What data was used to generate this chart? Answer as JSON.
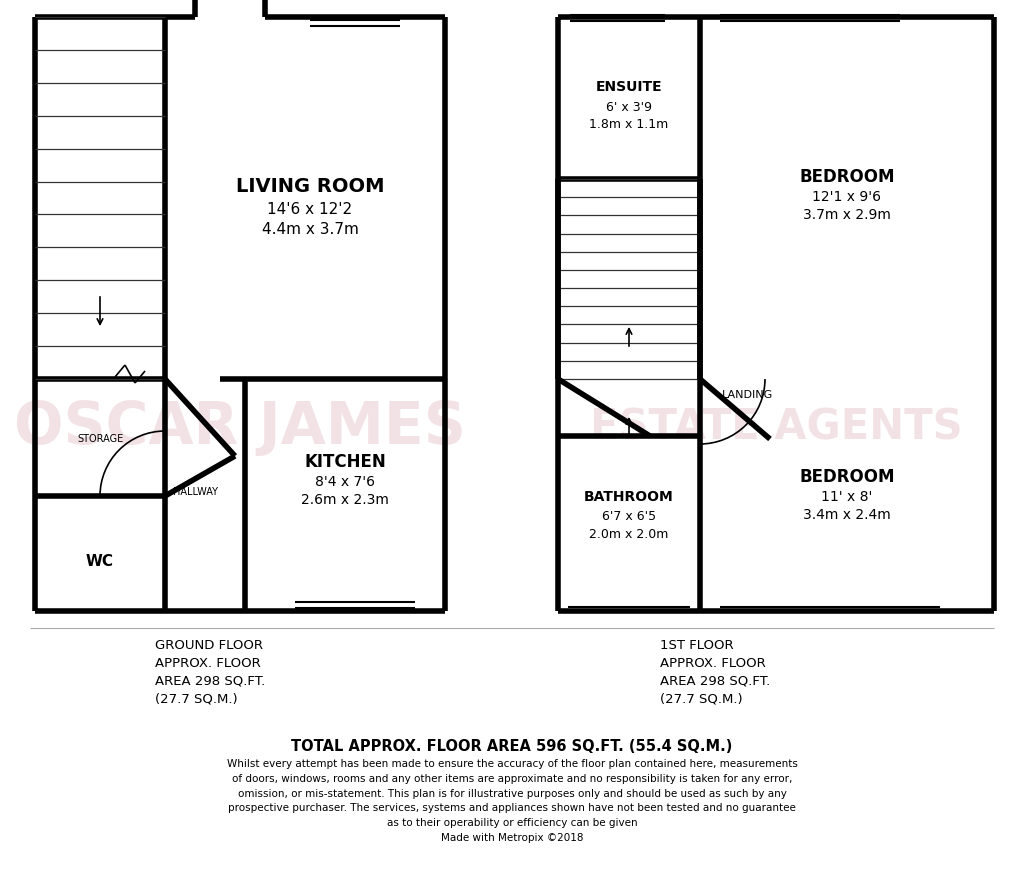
{
  "bg_color": "#ffffff",
  "wall_color": "#000000",
  "wall_lw": 4.0,
  "thin_lw": 1.2,
  "watermark_color": "#d4a0aa",
  "watermark_alpha": 0.3,
  "ground_floor_label": "GROUND FLOOR\nAPPROX. FLOOR\nAREA 298 SQ.FT.\n(27.7 SQ.M.)",
  "first_floor_label": "1ST FLOOR\nAPPROX. FLOOR\nAREA 298 SQ.FT.\n(27.7 SQ.M.)",
  "total_area_label": "TOTAL APPROX. FLOOR AREA 596 SQ.FT. (55.4 SQ.M.)",
  "disclaimer": "Whilst every attempt has been made to ensure the accuracy of the floor plan contained here, measurements\nof doors, windows, rooms and any other items are approximate and no responsibility is taken for any error,\nomission, or mis-statement. This plan is for illustrative purposes only and should be used as such by any\nprospective purchaser. The services, systems and appliances shown have not been tested and no guarantee\nas to their operability or efficiency can be given\nMade with Metropix ©2018"
}
